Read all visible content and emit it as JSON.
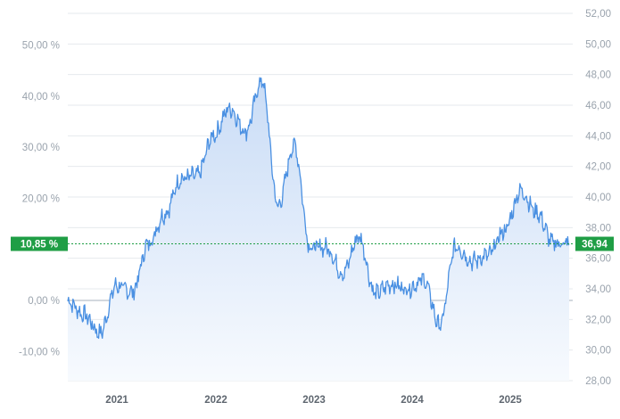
{
  "chart_data": {
    "type": "area",
    "x_ticks": [
      "2021",
      "2022",
      "2023",
      "2024",
      "2025"
    ],
    "left_axis": {
      "tick_labels": [
        "50,00 %",
        "40,00 %",
        "30,00 %",
        "20,00 %",
        "0,00 %",
        "-10,00 %"
      ],
      "tick_values": [
        50,
        40,
        30,
        20,
        0,
        -10
      ],
      "range": [
        -16,
        58
      ]
    },
    "right_axis": {
      "tick_labels": [
        "52,00",
        "50,00",
        "48,00",
        "46,00",
        "44,00",
        "42,00",
        "40,00",
        "38,00",
        "36,00",
        "34,00",
        "32,00",
        "30,00",
        "28,00"
      ],
      "tick_values": [
        52,
        50,
        48,
        46,
        44,
        42,
        40,
        38,
        36,
        34,
        32,
        30,
        28
      ],
      "range": [
        28,
        52
      ]
    },
    "current_marker": {
      "percent_label": "10,85 %",
      "price_label": "36,94",
      "percent": 10.85,
      "price": 36.94
    },
    "series": [
      {
        "x": [
          "2020-07",
          "2020-09",
          "2020-11",
          "2021-01",
          "2021-03",
          "2021-05",
          "2021-07",
          "2021-09",
          "2021-11",
          "2022-01",
          "2022-03",
          "2022-05",
          "2022-07",
          "2022-09",
          "2022-11",
          "2023-01",
          "2023-03",
          "2023-05",
          "2023-07",
          "2023-09",
          "2023-11",
          "2024-01",
          "2024-03",
          "2024-05",
          "2024-07",
          "2024-09",
          "2024-11",
          "2025-01",
          "2025-03",
          "2025-05",
          "2025-07",
          "2025-09"
        ],
        "values": [
          33.2,
          32.3,
          31.1,
          34.2,
          33.8,
          37.0,
          38.9,
          41.2,
          41.4,
          44.0,
          45.8,
          44.3,
          47.6,
          39.4,
          43.4,
          36.7,
          36.7,
          35.0,
          37.4,
          33.7,
          34.3,
          34.0,
          34.6,
          31.6,
          36.8,
          35.8,
          36.2,
          37.8,
          40.4,
          39.0,
          37.0,
          36.94
        ]
      }
    ],
    "colors": {
      "line": "#4a90e2",
      "area_top": "#c9dcf6",
      "area_bottom": "#f7fafe",
      "badge": "#1f9e45",
      "gridline": "#e6e9ed",
      "zero_line": "#a7b1bd"
    },
    "grid": true
  }
}
